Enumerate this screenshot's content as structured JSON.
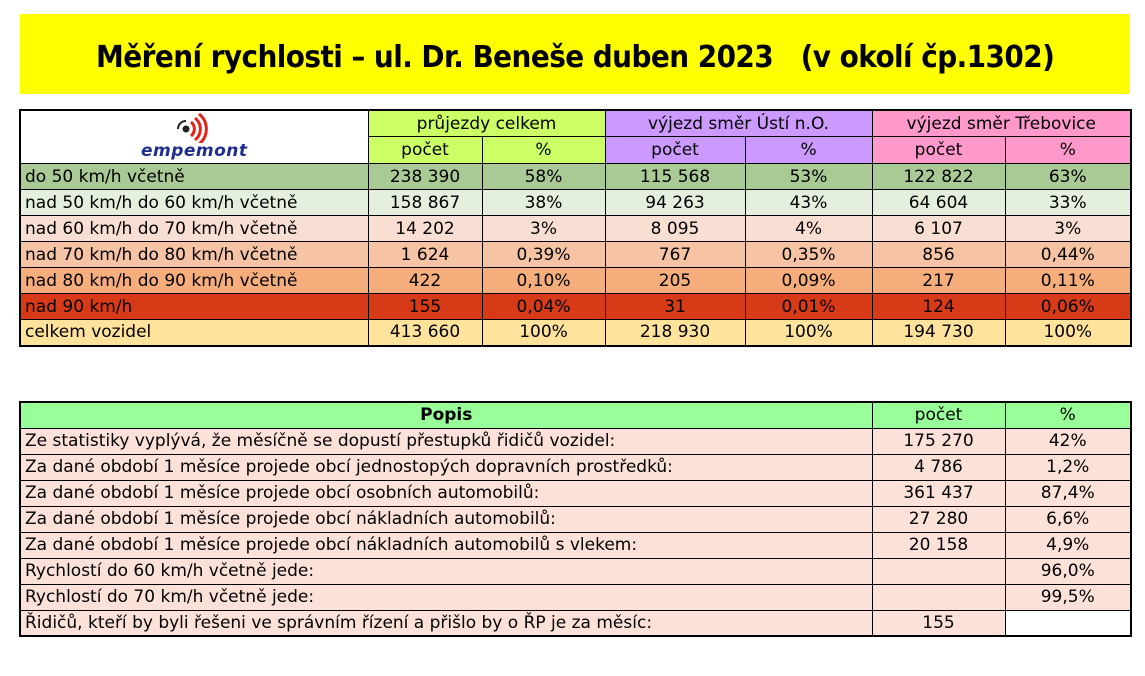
{
  "title": "Měření rychlosti – ul. Dr. Beneše duben 2023   (v okolí čp.1302)",
  "logo": {
    "brand": "empemont"
  },
  "speed_table": {
    "groups": [
      "průjezdy celkem",
      "výjezd směr Ústí n.O.",
      "výjezd směr Třebovice"
    ],
    "subheaders": {
      "count": "počet",
      "percent": "%"
    },
    "rows": [
      {
        "label": "do 50 km/h včetně",
        "values": [
          "238 390",
          "58%",
          "115 568",
          "53%",
          "122 822",
          "63%"
        ]
      },
      {
        "label": "nad 50 km/h do 60 km/h včetně",
        "values": [
          "158 867",
          "38%",
          "94 263",
          "43%",
          "64 604",
          "33%"
        ]
      },
      {
        "label": "nad 60 km/h do 70 km/h včetně",
        "values": [
          "14 202",
          "3%",
          "8 095",
          "4%",
          "6 107",
          "3%"
        ]
      },
      {
        "label": "nad 70 km/h do 80 km/h včetně",
        "values": [
          "1 624",
          "0,39%",
          "767",
          "0,35%",
          "856",
          "0,44%"
        ]
      },
      {
        "label": "nad 80 km/h do 90 km/h včetně",
        "values": [
          "422",
          "0,10%",
          "205",
          "0,09%",
          "217",
          "0,11%"
        ]
      },
      {
        "label": "nad 90 km/h",
        "values": [
          "155",
          "0,04%",
          "31",
          "0,01%",
          "124",
          "0,06%"
        ]
      },
      {
        "label": "celkem vozidel",
        "values": [
          "413 660",
          "100%",
          "218 930",
          "100%",
          "194 730",
          "100%"
        ]
      }
    ]
  },
  "summary_table": {
    "headers": {
      "description": "Popis",
      "count": "počet",
      "percent": "%"
    },
    "rows": [
      {
        "text": "Ze statistiky vyplývá, že měsíčně se dopustí přestupků řidičů vozidel:",
        "count": "175 270",
        "percent": "42%"
      },
      {
        "text": "Za dané období 1 měsíce projede obcí jednostopých dopravních prostředků:",
        "count": "4 786",
        "percent": "1,2%"
      },
      {
        "text": "Za dané období 1 měsíce projede obcí osobních automobilů:",
        "count": "361 437",
        "percent": "87,4%"
      },
      {
        "text": "Za dané období 1 měsíce projede obcí nákladních automobilů:",
        "count": "27 280",
        "percent": "6,6%"
      },
      {
        "text": "Za dané období 1 měsíce projede obcí nákladních automobilů s vlekem:",
        "count": "20 158",
        "percent": "4,9%"
      },
      {
        "text": "Rychlostí do 60 km/h včetně jede:",
        "count": "",
        "percent": "96,0%"
      },
      {
        "text": "Rychlostí do 70 km/h včetně jede:",
        "count": "",
        "percent": "99,5%"
      },
      {
        "text": "Řidičů, kteří by byli řešeni ve správním řízení a  přišlo by o ŘP je za měsíc:",
        "count": "155",
        "percent": ""
      }
    ]
  },
  "colors": {
    "banner": "#ffff00",
    "group_total": "#ccff66",
    "group_usti": "#cc99ff",
    "group_trebovice": "#ff99cc",
    "row_do50": "#a9c995",
    "row_50_60": "#e4efde",
    "row_60_70": "#f9dfd3",
    "row_70_80": "#f6c4a4",
    "row_80_90": "#f4ad7b",
    "row_nad90": "#d63a17",
    "row_total": "#ffe39c",
    "summary_header": "#99ff99",
    "summary_row": "#fce1d8"
  }
}
